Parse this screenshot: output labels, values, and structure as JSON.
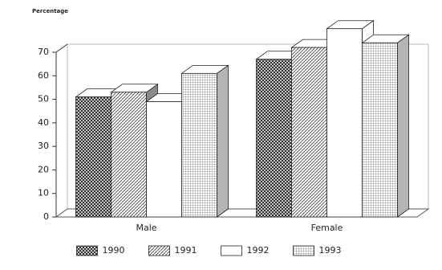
{
  "chart_data": {
    "type": "bar3d",
    "y_label": "Percentage",
    "categories": [
      "Male",
      "Female"
    ],
    "series": [
      {
        "name": "1990",
        "color": "#444444",
        "values": [
          51,
          67
        ]
      },
      {
        "name": "1991",
        "color": "#8a8a8a",
        "values": [
          53,
          72
        ]
      },
      {
        "name": "1992",
        "color": "#ffffff",
        "values": [
          49,
          80
        ]
      },
      {
        "name": "1993",
        "color": "#b5b5b5",
        "values": [
          61,
          74
        ]
      }
    ],
    "ylim": [
      0,
      70
    ],
    "yticks": [
      0,
      10,
      20,
      30,
      40,
      50,
      60,
      70
    ],
    "legend": "bottom"
  }
}
